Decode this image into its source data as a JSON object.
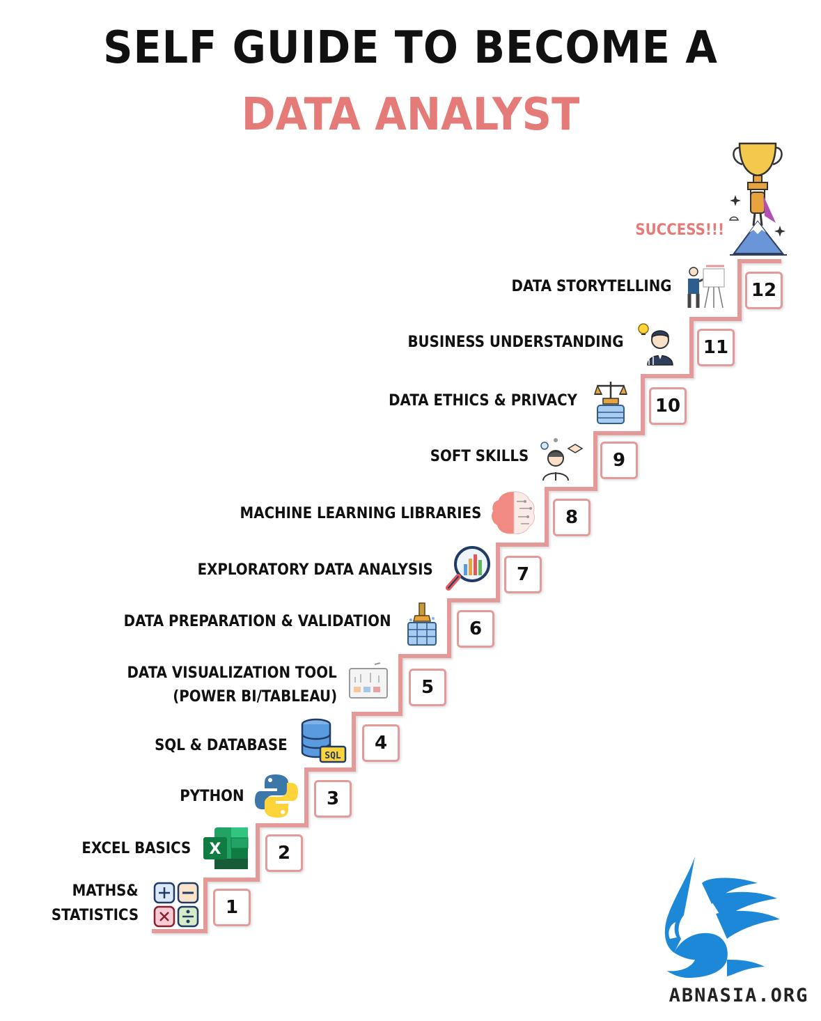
{
  "title": {
    "line1": "SELF GUIDE TO BECOME A",
    "line2": "DATA ANALYST"
  },
  "success_label": "SUCCESS!!!",
  "steps": [
    {
      "number": "1",
      "label": "MATHS&",
      "label2": "STATISTICS",
      "icon": "calculator-icon"
    },
    {
      "number": "2",
      "label": "EXCEL BASICS",
      "icon": "excel-icon"
    },
    {
      "number": "3",
      "label": "PYTHON",
      "icon": "python-icon"
    },
    {
      "number": "4",
      "label": "SQL & DATABASE",
      "icon": "database-icon",
      "icon_text": "SQL"
    },
    {
      "number": "5",
      "label": "DATA VISUALIZATION TOOL",
      "label2": "(POWER BI/TABLEAU)",
      "icon": "dashboard-icon"
    },
    {
      "number": "6",
      "label": "DATA PREPARATION & VALIDATION",
      "icon": "data-cleaning-icon"
    },
    {
      "number": "7",
      "label": "EXPLORATORY DATA ANALYSIS",
      "icon": "magnifier-chart-icon"
    },
    {
      "number": "8",
      "label": "MACHINE LEARNING LIBRARIES",
      "icon": "brain-icon"
    },
    {
      "number": "9",
      "label": "SOFT SKILLS",
      "icon": "handshake-person-icon"
    },
    {
      "number": "10",
      "label": "DATA ETHICS & PRIVACY",
      "icon": "scales-icon"
    },
    {
      "number": "11",
      "label": "BUSINESS UNDERSTANDING",
      "icon": "businessman-idea-icon"
    },
    {
      "number": "12",
      "label": "DATA STORYTELLING",
      "icon": "presenter-icon"
    }
  ],
  "trophy_icon": "trophy-mountain-icon",
  "brand": {
    "name": "ABNASIA.ORG",
    "logo_icon": "griffin-logo-icon"
  },
  "colors": {
    "accent": "#e57b78",
    "stair": "#e59a9a",
    "text": "#111111",
    "brand_blue": "#1e88d8"
  }
}
